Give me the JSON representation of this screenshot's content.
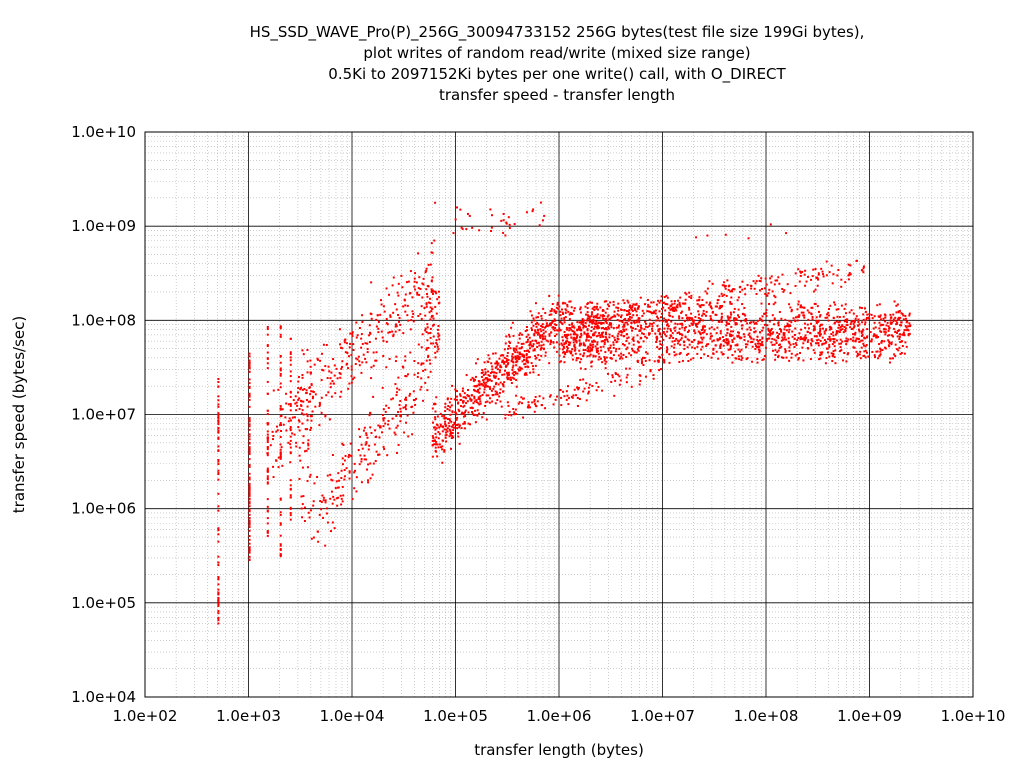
{
  "chart_data": {
    "type": "scatter",
    "title_lines": [
      "HS_SSD_WAVE_Pro(P)_256G_30094733152 256G bytes(test file size 199Gi bytes),",
      "plot writes of random read/write (mixed size range)",
      "0.5Ki to 2097152Ki bytes per one write() call, with O_DIRECT",
      "transfer speed - transfer length"
    ],
    "xlabel": "transfer length (bytes)",
    "ylabel": "transfer speed (bytes/sec)",
    "x_scale": "log",
    "y_scale": "log",
    "xlim": [
      100,
      10000000000
    ],
    "ylim": [
      10000,
      10000000000
    ],
    "x_tick_labels": [
      "1.0e+02",
      "1.0e+03",
      "1.0e+04",
      "1.0e+05",
      "1.0e+06",
      "1.0e+07",
      "1.0e+08",
      "1.0e+09",
      "1.0e+10"
    ],
    "y_tick_labels": [
      "1.0e+04",
      "1.0e+05",
      "1.0e+06",
      "1.0e+07",
      "1.0e+08",
      "1.0e+09",
      "1.0e+10"
    ],
    "grid": true,
    "point_color": "#ff0000",
    "series": [
      {
        "clusters": [
          {
            "x": [
              512,
              512
            ],
            "y": [
              60000,
              25000000
            ],
            "n": 70,
            "shape": "vertical"
          },
          {
            "x": [
              1024,
              1024
            ],
            "y": [
              230000,
              45000000
            ],
            "n": 90,
            "shape": "vertical"
          },
          {
            "x": [
              1536,
              1536
            ],
            "y": [
              500000,
              90000000
            ],
            "n": 50,
            "shape": "vertical"
          },
          {
            "x": [
              2048,
              2048
            ],
            "y": [
              300000,
              100000000
            ],
            "n": 45,
            "shape": "vertical"
          },
          {
            "x": [
              2560,
              2560
            ],
            "y": [
              700000,
              70000000
            ],
            "n": 35,
            "shape": "vertical"
          },
          {
            "x": [
              3072,
              4096
            ],
            "y": [
              700000,
              50000000
            ],
            "n": 60,
            "shape": "vertical"
          },
          {
            "x": [
              1500,
              60000
            ],
            "y": [
              5000000,
              300000000
            ],
            "n": 320,
            "shape": "band"
          },
          {
            "x": [
              4000,
              60000
            ],
            "y": [
              700000,
              35000000
            ],
            "n": 230,
            "shape": "band"
          },
          {
            "x": [
              50000,
              70000
            ],
            "y": [
              40000000,
              220000000
            ],
            "n": 60,
            "shape": "vertical"
          },
          {
            "x": [
              60000,
              1000000
            ],
            "y": [
              6000000,
              100000000
            ],
            "n": 650,
            "shape": "band"
          },
          {
            "x": [
              1000000,
              3000000
            ],
            "y": [
              30000000,
              160000000
            ],
            "n": 150,
            "shape": "blob"
          },
          {
            "x": [
              1000000,
              2500000000
            ],
            "y": [
              35000000,
              160000000
            ],
            "n": 1500,
            "shape": "blob"
          },
          {
            "x": [
              300000,
              10000000
            ],
            "y": [
              10000000,
              35000000
            ],
            "n": 120,
            "shape": "band"
          },
          {
            "x": [
              2000000,
              1000000000
            ],
            "y": [
              100000000,
              380000000
            ],
            "n": 260,
            "shape": "band"
          },
          {
            "x": [
              60000,
              1000000
            ],
            "y": [
              700000000,
              1800000000
            ],
            "n": 35,
            "shape": "blob"
          },
          {
            "x": [
              10000000,
              200000000
            ],
            "y": [
              600000000,
              1050000000
            ],
            "n": 6,
            "shape": "blob"
          }
        ]
      }
    ]
  }
}
